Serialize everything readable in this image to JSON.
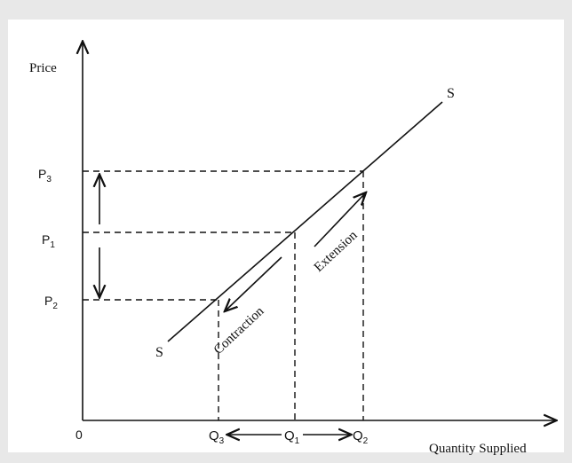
{
  "axes": {
    "y_label": "Price",
    "x_label": "Quantity Supplied",
    "origin": "0"
  },
  "curve": {
    "label_top": "S",
    "label_bottom": "S"
  },
  "prices": [
    {
      "label": "P",
      "sub": "3"
    },
    {
      "label": "P",
      "sub": "1"
    },
    {
      "label": "P",
      "sub": "2"
    }
  ],
  "quantities": [
    {
      "label": "Q",
      "sub": "3"
    },
    {
      "label": "Q",
      "sub": "1"
    },
    {
      "label": "Q",
      "sub": "2"
    }
  ],
  "annotations": {
    "extension": "Extension",
    "contraction": "Contraction"
  },
  "colors": {
    "ink": "#111111",
    "background": "#ffffff",
    "frame": "#e8e8e8"
  }
}
